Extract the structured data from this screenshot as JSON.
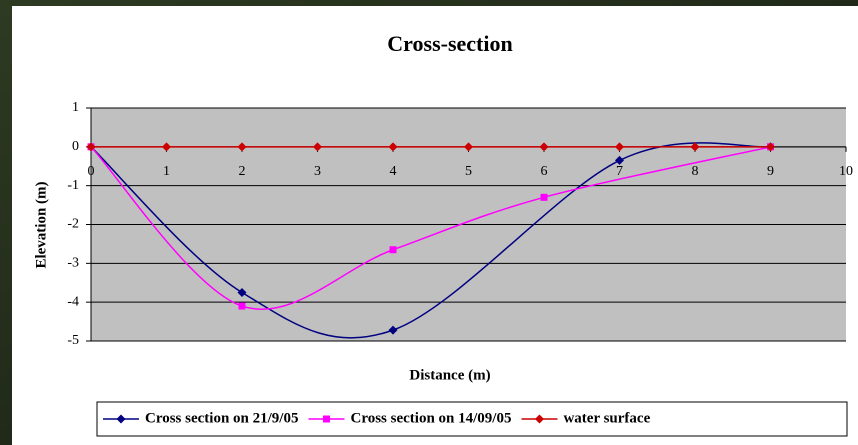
{
  "chart_data": {
    "type": "scatter-smooth",
    "title": "Cross-section",
    "x_label": "Distance (m)",
    "y_label": "Elevation (m)",
    "xlim": [
      0,
      10
    ],
    "xticks": [
      0,
      1,
      2,
      3,
      4,
      5,
      6,
      7,
      8,
      9,
      10
    ],
    "ylim": [
      -5,
      1
    ],
    "yticks": [
      -5,
      -4,
      -3,
      -2,
      -1,
      0,
      1
    ],
    "grid": true,
    "series": [
      {
        "name": "Cross section on 21/9/05",
        "color": "#000080",
        "marker": "diamond",
        "x": [
          0,
          2,
          4,
          7,
          9
        ],
        "values": [
          0,
          -3.75,
          -4.72,
          -0.35,
          0
        ]
      },
      {
        "name": "Cross section on 14/09/05",
        "color": "#ff00ff",
        "marker": "square",
        "x": [
          0,
          2,
          4,
          6,
          9
        ],
        "values": [
          0,
          -4.1,
          -2.65,
          -1.3,
          0
        ]
      },
      {
        "name": "water surface",
        "color": "#cc0000",
        "marker": "diamond",
        "x": [
          0,
          1,
          2,
          3,
          4,
          5,
          6,
          7,
          8,
          9
        ],
        "values": [
          0,
          0,
          0,
          0,
          0,
          0,
          0,
          0,
          0,
          0
        ]
      }
    ],
    "legend": "bottom"
  }
}
